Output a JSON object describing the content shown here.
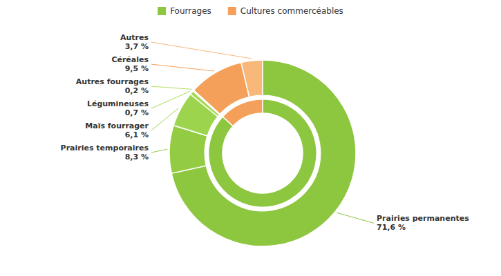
{
  "chart_data": {
    "type": "pie",
    "series": [
      {
        "categories": [
          "Prairies permanentes\n71,6 %",
          "Prairies temporaires\n8,3 %",
          "Maïs fourrager\n6,1 %",
          "Légumineuses\n0,7 %",
          "Autres fourrages\n0,2 %",
          "Céréales\n9,5 %",
          "Autres\n3,7 %"
        ],
        "values": [
          71.6,
          8.3,
          6.1,
          0.7,
          0.2,
          9.5,
          3.7
        ],
        "colors": [
          "#8dc63f",
          "#93cc42",
          "#9dd44e",
          "#a8d958",
          "#b3de64",
          "#f5a05a",
          "#f7b87a"
        ]
      },
      {
        "categories": [
          "Fourrages",
          "Cultures commercéables"
        ],
        "values": [
          86.9,
          13.2
        ],
        "colors": [
          "#8dc63f",
          "#f5a05a"
        ]
      }
    ],
    "legend": "top"
  }
}
